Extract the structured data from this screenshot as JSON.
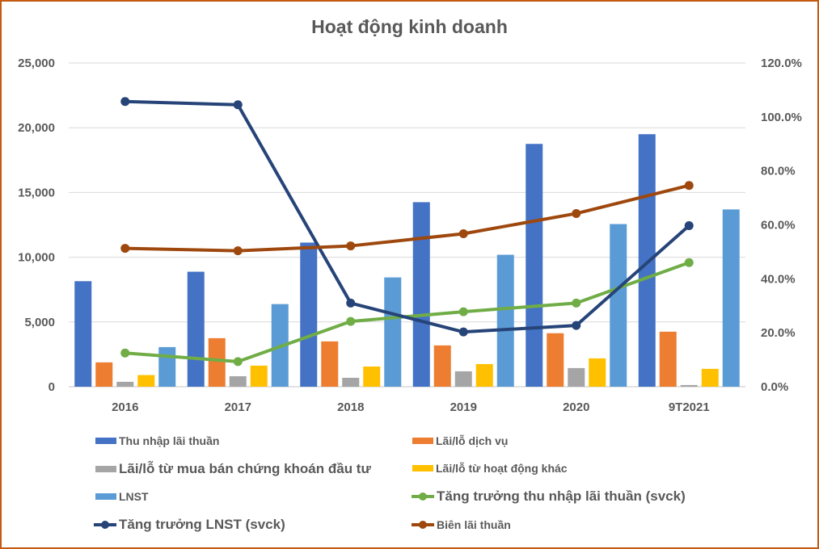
{
  "chart_data": {
    "type": "bar+line",
    "title": "Hoạt động kinh doanh",
    "categories": [
      "2016",
      "2017",
      "2018",
      "2019",
      "2020",
      "9T2021"
    ],
    "y_left": {
      "lim": [
        0,
        25000
      ],
      "ticks": [
        "0",
        "5,000",
        "10,000",
        "15,000",
        "20,000",
        "25,000"
      ],
      "tick_values": [
        0,
        5000,
        10000,
        15000,
        20000,
        25000
      ]
    },
    "y_right": {
      "lim": [
        0,
        120
      ],
      "ticks": [
        "0.0%",
        "20.0%",
        "40.0%",
        "60.0%",
        "80.0%",
        "100.0%",
        "120.0%"
      ],
      "tick_values": [
        0,
        20,
        40,
        60,
        80,
        100,
        120
      ]
    },
    "grid": true,
    "legend_position": "bottom",
    "bar_series": [
      {
        "name": "Thu nhập lãi thuần",
        "color": "#4472c4",
        "values": [
          8150,
          8880,
          11130,
          14250,
          18750,
          19500
        ]
      },
      {
        "name": "Lãi/lỗ dịch vụ",
        "color": "#ed7d31",
        "values": [
          1880,
          3750,
          3500,
          3190,
          4130,
          4250
        ]
      },
      {
        "name": "Lãi/lỗ từ mua bán chứng khoán đầu tư",
        "color": "#a5a5a5",
        "values": [
          380,
          810,
          690,
          1190,
          1440,
          130
        ]
      },
      {
        "name": "Lãi/lỗ từ hoạt động khác",
        "color": "#ffc000",
        "values": [
          900,
          1630,
          1560,
          1750,
          2190,
          1380
        ]
      },
      {
        "name": "LNST",
        "color": "#5b9bd5",
        "values": [
          3060,
          6380,
          8440,
          10190,
          12560,
          13690
        ]
      }
    ],
    "line_series": [
      {
        "name": "Tăng trưởng thu nhập lãi thuần (svck)",
        "color": "#70ad47",
        "axis": "right",
        "values": [
          12.5,
          9.3,
          24.2,
          27.8,
          31.0,
          46.0
        ]
      },
      {
        "name": "Tăng trưởng LNST (svck)",
        "color": "#264478",
        "axis": "right",
        "values": [
          105.7,
          104.5,
          31.0,
          20.3,
          22.7,
          59.7
        ]
      },
      {
        "name": "Biên lãi thuần",
        "color": "#9e480e",
        "axis": "right",
        "values": [
          51.3,
          50.4,
          52.2,
          56.7,
          64.2,
          74.6
        ]
      }
    ]
  }
}
